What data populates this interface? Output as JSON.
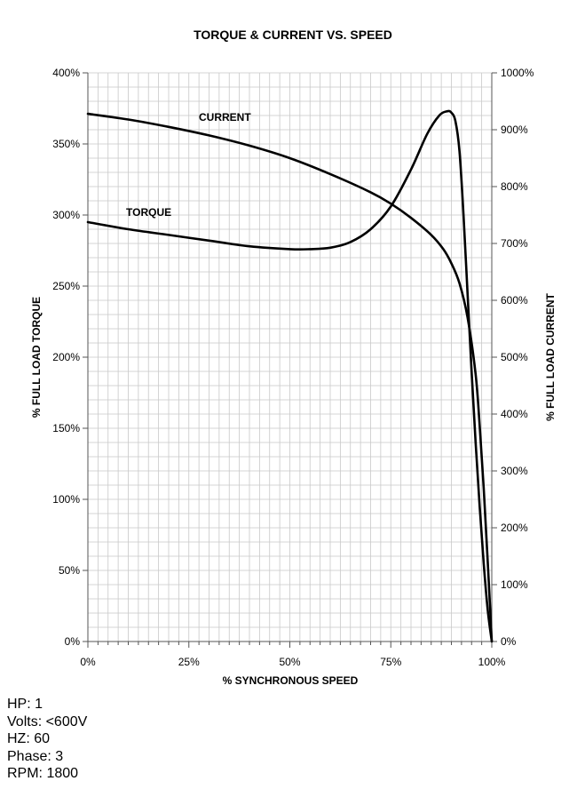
{
  "chart_data": {
    "type": "line",
    "title": "TORQUE & CURRENT VS. SPEED",
    "xlabel": "% SYNCHRONOUS SPEED",
    "ylabel": "% FULL LOAD TORQUE",
    "y2label": "% FULL LOAD CURRENT",
    "xlim": [
      0,
      100
    ],
    "ylim": [
      0,
      400
    ],
    "y2lim": [
      0,
      1000
    ],
    "x_ticks": [
      {
        "value": 0,
        "label": "0%"
      },
      {
        "value": 25,
        "label": "25%"
      },
      {
        "value": 50,
        "label": "50%"
      },
      {
        "value": 75,
        "label": "75%"
      },
      {
        "value": 100,
        "label": "100%"
      }
    ],
    "y_ticks": [
      {
        "value": 0,
        "label": "0%"
      },
      {
        "value": 50,
        "label": "50%"
      },
      {
        "value": 100,
        "label": "100%"
      },
      {
        "value": 150,
        "label": "150%"
      },
      {
        "value": 200,
        "label": "200%"
      },
      {
        "value": 250,
        "label": "250%"
      },
      {
        "value": 300,
        "label": "300%"
      },
      {
        "value": 350,
        "label": "350%"
      },
      {
        "value": 400,
        "label": "400%"
      }
    ],
    "y2_ticks": [
      {
        "value": 0,
        "label": "0%"
      },
      {
        "value": 100,
        "label": "100%"
      },
      {
        "value": 200,
        "label": "200%"
      },
      {
        "value": 300,
        "label": "300%"
      },
      {
        "value": 400,
        "label": "400%"
      },
      {
        "value": 500,
        "label": "500%"
      },
      {
        "value": 600,
        "label": "600%"
      },
      {
        "value": 700,
        "label": "700%"
      },
      {
        "value": 800,
        "label": "800%"
      },
      {
        "value": 900,
        "label": "900%"
      },
      {
        "value": 1000,
        "label": "1000%"
      }
    ],
    "grid": true,
    "series": [
      {
        "name": "TORQUE",
        "axis": "left",
        "color": "#000000",
        "x": [
          0,
          10,
          20,
          30,
          40,
          50,
          55,
          60,
          65,
          70,
          75,
          80,
          84,
          87,
          89,
          90,
          91,
          92,
          93,
          94,
          95,
          96,
          97,
          98,
          99,
          100
        ],
        "y": [
          295,
          290,
          286,
          282,
          278,
          276,
          276,
          277,
          281,
          290,
          306,
          332,
          357,
          370,
          373,
          372,
          366,
          345,
          300,
          245,
          190,
          140,
          95,
          55,
          22,
          0
        ]
      },
      {
        "name": "CURRENT",
        "axis": "right",
        "color": "#000000",
        "x": [
          0,
          10,
          20,
          30,
          40,
          50,
          60,
          70,
          75,
          80,
          85,
          88,
          90,
          92,
          94,
          96,
          97,
          98,
          99,
          100
        ],
        "y": [
          928,
          918,
          905,
          890,
          872,
          850,
          822,
          790,
          770,
          745,
          715,
          690,
          665,
          630,
          570,
          470,
          380,
          270,
          140,
          0
        ]
      }
    ],
    "legend": "inline labels near curves"
  },
  "specs": [
    {
      "label": "HP:",
      "value": "1"
    },
    {
      "label": "Volts:",
      "value": "<600V"
    },
    {
      "label": "HZ:",
      "value": "60"
    },
    {
      "label": "Phase:",
      "value": "3"
    },
    {
      "label": "RPM:",
      "value": "1800"
    }
  ]
}
